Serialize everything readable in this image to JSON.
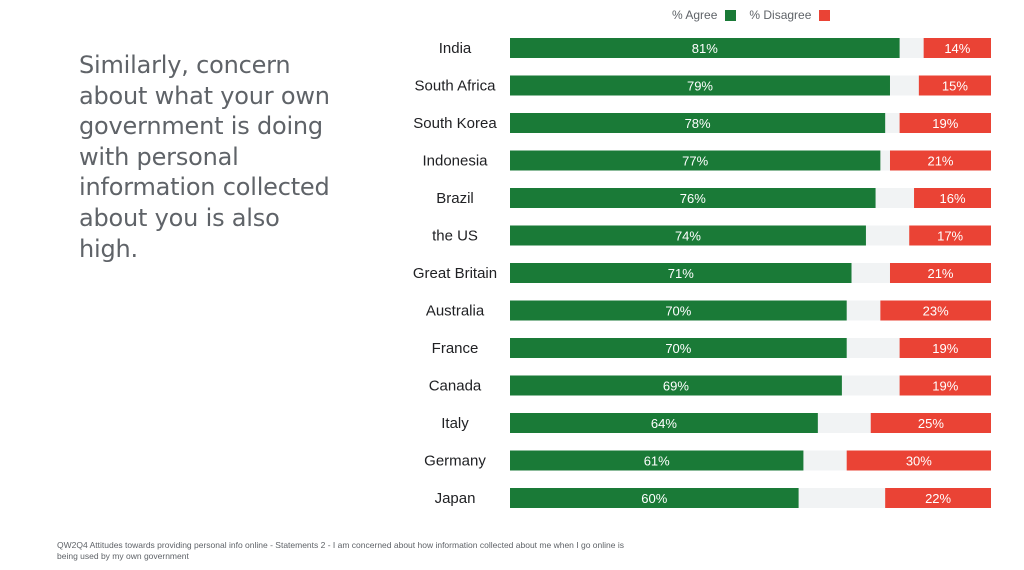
{
  "headline": "Similarly, concern about what your own government is doing with personal information collected about you is also high.",
  "footnote": "QW2Q4 Attitudes towards providing personal info online - Statements 2 - I am concerned about how information collected about me when I go online is being used by my own government",
  "colors": {
    "agree": "#1a7a37",
    "disagree": "#ea4335",
    "track": "#f1f3f4",
    "label": "#202124"
  },
  "chart_data": {
    "type": "bar",
    "orientation": "horizontal",
    "stacked": "diverging",
    "title": "",
    "xlabel": "",
    "ylabel": "",
    "xlim": [
      0,
      100
    ],
    "legend": "top-right",
    "categories": [
      "India",
      "South Africa",
      "South Korea",
      "Indonesia",
      "Brazil",
      "the US",
      "Great Britain",
      "Australia",
      "France",
      "Canada",
      "Italy",
      "Germany",
      "Japan"
    ],
    "series": [
      {
        "name": "% Agree",
        "color": "#1a7a37",
        "values": [
          81,
          79,
          78,
          77,
          76,
          74,
          71,
          70,
          70,
          69,
          64,
          61,
          60
        ]
      },
      {
        "name": "% Disagree",
        "color": "#ea4335",
        "values": [
          14,
          15,
          19,
          21,
          16,
          17,
          21,
          23,
          19,
          19,
          25,
          30,
          22
        ]
      }
    ],
    "value_labels": {
      "agree": [
        "81%",
        "79%",
        "78%",
        "77%",
        "76%",
        "74%",
        "71%",
        "70%",
        "70%",
        "69%",
        "64%",
        "61%",
        "60%"
      ],
      "disagree": [
        "14%",
        "15%",
        "19%",
        "21%",
        "16%",
        "17%",
        "21%",
        "23%",
        "19%",
        "19%",
        "25%",
        "30%",
        "22%"
      ]
    }
  }
}
